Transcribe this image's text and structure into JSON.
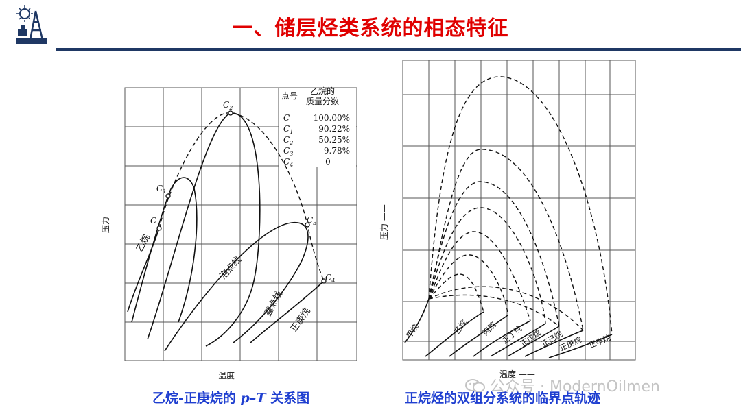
{
  "header": {
    "title": "一、储层烃类系统的相态特征",
    "accent_color": "#e00000",
    "rule_color": "#1f3864",
    "logo_icon": "oil-derrick-logo-icon"
  },
  "left_figure": {
    "y_label": "压力 ——",
    "x_label": "温度 ——",
    "table": {
      "col1_header": "点号",
      "col2_header_line1": "乙烷的",
      "col2_header_line2": "质量分数",
      "rows": [
        {
          "point": "C",
          "sub": "",
          "value": "100.00%"
        },
        {
          "point": "C",
          "sub": "1",
          "value": "90.22%"
        },
        {
          "point": "C",
          "sub": "2",
          "value": "50.25%"
        },
        {
          "point": "C",
          "sub": "3",
          "value": "9.78%"
        },
        {
          "point": "C",
          "sub": "4",
          "value": "0"
        }
      ]
    },
    "point_labels": {
      "c": "C",
      "c1": "C",
      "c1_sub": "1",
      "c2": "C",
      "c2_sub": "2",
      "c3": "C",
      "c3_sub": "3",
      "c4": "C",
      "c4_sub": "4"
    },
    "curve_labels": {
      "ethane": "乙烷",
      "bubble": "泡点线",
      "dew": "露点线",
      "heptane": "正庚烷"
    }
  },
  "right_figure": {
    "y_label": "压力 ——",
    "x_label": "温度 ——",
    "curve_labels": [
      "甲烷",
      "乙烷",
      "丙烷",
      "正丁烷",
      "正戊烷",
      "正己烷",
      "正庚烷",
      "正辛烷"
    ]
  },
  "captions": {
    "left_part1": "乙烷-正庚烷的 ",
    "left_italic": "p–T",
    "left_part2": " 关系图",
    "right": "正烷烃的双组分系统的临界点轨迹",
    "color": "#1f3fd0"
  },
  "watermark": {
    "text": "公众号 · ModernOilmen",
    "icon": "wechat-icon"
  }
}
